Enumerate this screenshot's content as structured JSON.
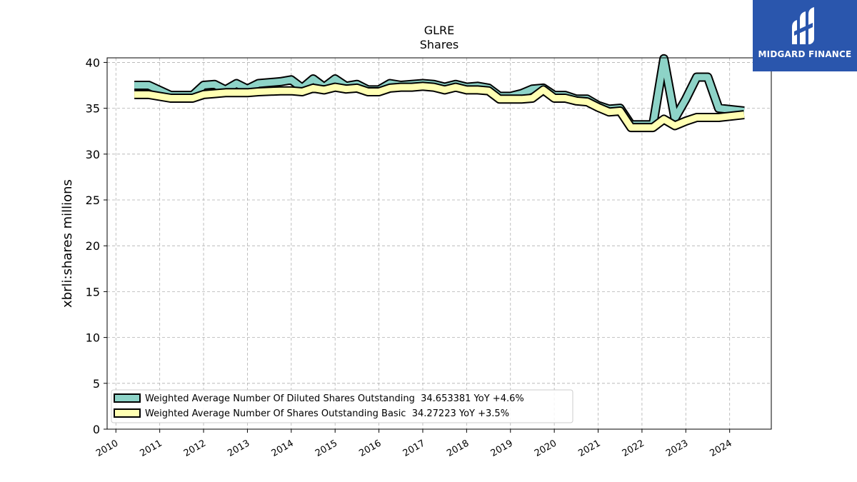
{
  "chart_data": {
    "type": "area",
    "title": "GLRE",
    "subtitle": "Shares",
    "ylabel": "xbrli:shares millions",
    "xlabel": "",
    "xlim": [
      2009.8,
      2024.95
    ],
    "ylim": [
      0,
      40.5
    ],
    "yticks": [
      0,
      5,
      10,
      15,
      20,
      25,
      30,
      35,
      40
    ],
    "xticks": [
      "2010",
      "2011",
      "2012",
      "2013",
      "2014",
      "2015",
      "2016",
      "2017",
      "2018",
      "2019",
      "2020",
      "2021",
      "2022",
      "2023",
      "2024"
    ],
    "grid": true,
    "legend_position": "lower-left",
    "series": [
      {
        "name": "Weighted Average Number Of Diluted Shares Outstanding  34.653381 YoY +4.6%",
        "color": "#8dd3c7",
        "x": [
          2010.42,
          2010.75,
          2011.25,
          2011.75,
          2012.0,
          2012.25,
          2012.5,
          2012.75,
          2013.0,
          2013.25,
          2013.75,
          2014.0,
          2014.25,
          2014.5,
          2014.75,
          2015.0,
          2015.25,
          2015.5,
          2015.75,
          2016.0,
          2016.25,
          2016.5,
          2016.75,
          2017.0,
          2017.25,
          2017.5,
          2017.75,
          2018.0,
          2018.25,
          2018.5,
          2018.75,
          2019.0,
          2019.25,
          2019.5,
          2019.75,
          2020.0,
          2020.25,
          2020.5,
          2020.75,
          2021.0,
          2021.25,
          2021.5,
          2021.75,
          2022.0,
          2022.25,
          2022.5,
          2022.75,
          2023.0,
          2023.25,
          2023.5,
          2023.75,
          2024.33
        ],
        "values": [
          37.5,
          37.5,
          36.4,
          36.4,
          37.5,
          37.6,
          37.0,
          37.7,
          37.1,
          37.7,
          37.9,
          38.1,
          37.2,
          38.2,
          37.3,
          38.2,
          37.4,
          37.6,
          37.0,
          37.0,
          37.7,
          37.5,
          37.6,
          37.7,
          37.6,
          37.3,
          37.6,
          37.3,
          37.4,
          37.2,
          36.3,
          36.3,
          36.6,
          37.1,
          37.2,
          36.4,
          36.4,
          36.0,
          36.0,
          35.3,
          34.9,
          35.0,
          33.2,
          33.2,
          33.2,
          40.4,
          33.9,
          36.0,
          38.4,
          38.4,
          35.0,
          34.7
        ]
      },
      {
        "name": "Weighted Average Number Of Shares Outstanding Basic  34.27223 YoY +3.5%",
        "color": "#ffffb3",
        "x": [
          2010.42,
          2010.75,
          2011.25,
          2011.75,
          2012.0,
          2012.25,
          2012.5,
          2012.75,
          2013.0,
          2013.25,
          2013.75,
          2014.0,
          2014.25,
          2014.5,
          2014.75,
          2015.0,
          2015.25,
          2015.5,
          2015.75,
          2016.0,
          2016.25,
          2016.5,
          2016.75,
          2017.0,
          2017.25,
          2017.5,
          2017.75,
          2018.0,
          2018.25,
          2018.5,
          2018.75,
          2019.0,
          2019.25,
          2019.5,
          2019.75,
          2020.0,
          2020.25,
          2020.5,
          2020.75,
          2021.0,
          2021.25,
          2021.5,
          2021.75,
          2022.0,
          2022.25,
          2022.5,
          2022.75,
          2023.0,
          2023.25,
          2023.5,
          2023.75,
          2024.33
        ],
        "values": [
          36.5,
          36.5,
          36.1,
          36.1,
          36.5,
          36.6,
          36.7,
          36.7,
          36.7,
          36.8,
          36.9,
          36.9,
          36.8,
          37.2,
          37.0,
          37.3,
          37.1,
          37.2,
          36.8,
          36.8,
          37.2,
          37.3,
          37.3,
          37.4,
          37.3,
          37.0,
          37.3,
          37.0,
          37.0,
          36.9,
          36.0,
          36.0,
          36.0,
          36.1,
          37.0,
          36.1,
          36.1,
          35.8,
          35.7,
          35.1,
          34.6,
          34.7,
          32.9,
          32.9,
          32.9,
          33.8,
          33.1,
          33.6,
          34.0,
          34.0,
          34.0,
          34.3
        ]
      }
    ]
  },
  "logo": {
    "text": "MIDGARD FINANCE",
    "background": "#2a56ad"
  }
}
